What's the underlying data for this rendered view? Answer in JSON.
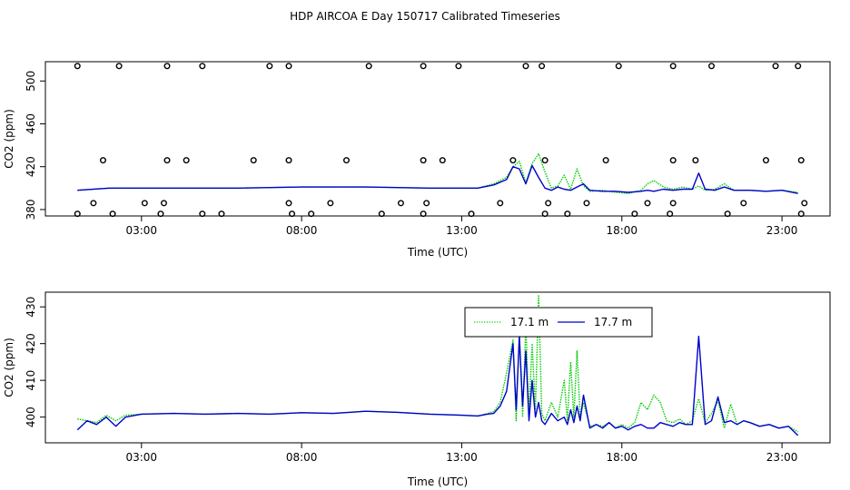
{
  "title": "HDP AIRCOA E  Day 150717  Calibrated Timeseries",
  "colors": {
    "green": "#00cc00",
    "blue": "#0000cc",
    "axis": "#000000",
    "points": "#000000"
  },
  "chart_data": [
    {
      "type": "line+scatter",
      "xlabel": "Time (UTC)",
      "ylabel": "CO2 (ppm)",
      "xlim": [
        0.0,
        24.5
      ],
      "ylim": [
        374,
        518
      ],
      "xticks": [
        3,
        8,
        13,
        18,
        23
      ],
      "xtick_labels": [
        "03:00",
        "08:00",
        "13:00",
        "18:00",
        "23:00"
      ],
      "yticks": [
        380,
        420,
        460,
        500
      ],
      "yticks_labels": [
        "380",
        "420",
        "460",
        "500"
      ],
      "series": [
        {
          "name": "17.1 m",
          "color": "green",
          "style": "dotted",
          "x": [
            1.0,
            2.0,
            4.0,
            6.0,
            8.0,
            10.0,
            12.0,
            13.5,
            14.0,
            14.4,
            14.6,
            14.8,
            15.0,
            15.2,
            15.4,
            15.6,
            15.8,
            16.0,
            16.2,
            16.4,
            16.6,
            16.8,
            17.0,
            17.4,
            17.8,
            18.2,
            18.6,
            18.8,
            19.0,
            19.3,
            19.6,
            19.9,
            20.2,
            20.4,
            20.6,
            20.9,
            21.2,
            21.5,
            22.0,
            22.5,
            23.0,
            23.5
          ],
          "y": [
            398,
            400,
            400,
            400,
            401,
            401,
            400,
            400,
            404,
            410,
            420,
            425,
            405,
            423,
            432,
            415,
            400,
            402,
            412,
            399,
            418,
            402,
            397,
            398,
            396,
            395,
            398,
            404,
            407,
            401,
            399,
            401,
            399,
            402,
            398,
            399,
            404,
            398,
            398,
            397,
            398,
            396
          ]
        },
        {
          "name": "17.7 m",
          "color": "blue",
          "style": "solid",
          "x": [
            1.0,
            2.0,
            4.0,
            6.0,
            8.0,
            10.0,
            12.0,
            13.5,
            14.0,
            14.4,
            14.6,
            14.8,
            15.0,
            15.2,
            15.4,
            15.6,
            15.8,
            16.0,
            16.2,
            16.4,
            16.6,
            16.8,
            17.0,
            17.4,
            17.8,
            18.2,
            18.6,
            18.8,
            19.0,
            19.3,
            19.6,
            19.9,
            20.2,
            20.4,
            20.6,
            20.9,
            21.2,
            21.5,
            22.0,
            22.5,
            23.0,
            23.5
          ],
          "y": [
            398,
            400,
            400,
            400,
            401,
            401,
            400,
            400,
            403,
            408,
            420,
            418,
            404,
            421,
            410,
            400,
            398,
            401,
            399,
            398,
            401,
            404,
            398,
            397,
            397,
            396,
            397,
            398,
            397,
            399,
            398,
            399,
            399,
            414,
            399,
            398,
            401,
            398,
            398,
            397,
            398,
            395
          ]
        }
      ],
      "flag_points": {
        "x": [
          1.0,
          2.3,
          3.8,
          4.9,
          7.0,
          7.6,
          10.1,
          11.8,
          12.9,
          15.0,
          15.5,
          17.9,
          19.6,
          20.8,
          22.8,
          23.5,
          1.8,
          3.8,
          4.4,
          6.5,
          7.6,
          9.4,
          11.8,
          12.4,
          14.6,
          15.6,
          17.5,
          19.6,
          20.3,
          22.5,
          23.6,
          1.0,
          1.5,
          2.1,
          3.1,
          3.6,
          3.7,
          4.9,
          5.5,
          7.6,
          7.7,
          8.3,
          8.9,
          10.5,
          11.1,
          11.8,
          11.9,
          13.3,
          14.2,
          15.6,
          15.7,
          16.3,
          16.9,
          18.4,
          18.8,
          19.5,
          19.6,
          21.3,
          21.8,
          23.6,
          23.7
        ],
        "y": [
          514,
          514,
          514,
          514,
          514,
          514,
          514,
          514,
          514,
          514,
          514,
          514,
          514,
          514,
          514,
          514,
          426,
          426,
          426,
          426,
          426,
          426,
          426,
          426,
          426,
          426,
          426,
          426,
          426,
          426,
          426,
          376,
          386,
          376,
          386,
          376,
          386,
          376,
          376,
          386,
          376,
          376,
          386,
          376,
          386,
          376,
          386,
          376,
          386,
          376,
          386,
          376,
          386,
          376,
          386,
          376,
          386,
          376,
          386,
          376,
          386
        ]
      }
    },
    {
      "type": "line",
      "xlabel": "Time (UTC)",
      "ylabel": "CO2 (ppm)",
      "xlim": [
        0.0,
        24.5
      ],
      "ylim": [
        393,
        434
      ],
      "xticks": [
        3,
        8,
        13,
        18,
        23
      ],
      "xtick_labels": [
        "03:00",
        "08:00",
        "13:00",
        "18:00",
        "23:00"
      ],
      "yticks": [
        400,
        410,
        420,
        430
      ],
      "ytick_labels": [
        "400",
        "410",
        "420",
        "430"
      ],
      "legend": {
        "position": "top-center",
        "entries": [
          "17.1 m",
          "17.7 m"
        ]
      },
      "series": [
        {
          "name": "17.1 m",
          "color": "green",
          "style": "dotted",
          "x": [
            1.0,
            1.3,
            1.6,
            1.9,
            2.2,
            2.5,
            3.0,
            4.0,
            5.0,
            6.0,
            7.0,
            8.0,
            9.0,
            10.0,
            11.0,
            12.0,
            13.0,
            13.5,
            13.8,
            14.0,
            14.2,
            14.4,
            14.6,
            14.7,
            14.8,
            14.9,
            15.0,
            15.1,
            15.2,
            15.3,
            15.4,
            15.5,
            15.6,
            15.8,
            16.0,
            16.2,
            16.3,
            16.4,
            16.5,
            16.6,
            16.7,
            16.8,
            17.0,
            17.2,
            17.4,
            17.6,
            17.8,
            18.0,
            18.2,
            18.4,
            18.6,
            18.8,
            19.0,
            19.2,
            19.4,
            19.6,
            19.8,
            20.0,
            20.2,
            20.4,
            20.6,
            20.8,
            21.0,
            21.2,
            21.4,
            21.6,
            21.8,
            22.0,
            22.3,
            22.6,
            22.9,
            23.2,
            23.5
          ],
          "y": [
            399.5,
            399.0,
            398.5,
            400.5,
            399.0,
            400.5,
            400.8,
            401.0,
            400.8,
            401.0,
            400.8,
            401.2,
            401.0,
            401.6,
            401.3,
            400.8,
            400.5,
            400.3,
            401.0,
            401.5,
            404.0,
            412.0,
            421.0,
            399.0,
            423.0,
            400.0,
            425.0,
            401.0,
            420.0,
            402.0,
            433.0,
            401.0,
            399.0,
            404.0,
            400.0,
            410.0,
            399.0,
            415.0,
            400.0,
            418.0,
            400.0,
            404.0,
            397.5,
            398.0,
            397.5,
            398.5,
            397.0,
            398.0,
            397.0,
            398.5,
            404.0,
            402.0,
            406.0,
            404.0,
            399.0,
            398.5,
            399.5,
            398.0,
            399.0,
            405.0,
            398.5,
            401.0,
            404.5,
            397.0,
            403.5,
            398.0,
            399.0,
            398.5,
            397.5,
            398.0,
            397.0,
            397.5,
            396.0
          ]
        },
        {
          "name": "17.7 m",
          "color": "blue",
          "style": "solid",
          "x": [
            1.0,
            1.3,
            1.6,
            1.9,
            2.2,
            2.5,
            3.0,
            4.0,
            5.0,
            6.0,
            7.0,
            8.0,
            9.0,
            10.0,
            11.0,
            12.0,
            13.0,
            13.5,
            13.8,
            14.0,
            14.2,
            14.4,
            14.6,
            14.7,
            14.8,
            14.9,
            15.0,
            15.1,
            15.2,
            15.3,
            15.4,
            15.5,
            15.6,
            15.8,
            16.0,
            16.2,
            16.3,
            16.4,
            16.5,
            16.6,
            16.7,
            16.8,
            17.0,
            17.2,
            17.4,
            17.6,
            17.8,
            18.0,
            18.2,
            18.4,
            18.6,
            18.8,
            19.0,
            19.2,
            19.4,
            19.6,
            19.8,
            20.0,
            20.2,
            20.4,
            20.6,
            20.8,
            21.0,
            21.2,
            21.4,
            21.6,
            21.8,
            22.0,
            22.3,
            22.6,
            22.9,
            23.2,
            23.5
          ],
          "y": [
            396.5,
            399.0,
            398.0,
            400.0,
            397.5,
            400.0,
            400.8,
            401.0,
            400.8,
            401.0,
            400.8,
            401.2,
            401.0,
            401.6,
            401.3,
            400.8,
            400.5,
            400.3,
            400.8,
            401.0,
            403.0,
            407.0,
            420.0,
            402.0,
            422.0,
            403.0,
            418.0,
            399.0,
            410.0,
            400.0,
            404.0,
            399.0,
            398.0,
            401.0,
            399.0,
            400.0,
            398.0,
            402.0,
            398.5,
            403.0,
            399.0,
            406.0,
            397.0,
            398.0,
            397.0,
            398.5,
            397.0,
            397.5,
            396.5,
            397.5,
            398.0,
            397.0,
            397.0,
            398.5,
            398.0,
            397.5,
            398.5,
            398.0,
            398.0,
            422.0,
            398.0,
            399.0,
            405.5,
            398.5,
            399.0,
            398.0,
            399.0,
            398.5,
            397.5,
            398.0,
            397.0,
            397.5,
            395.0
          ]
        }
      ]
    }
  ]
}
